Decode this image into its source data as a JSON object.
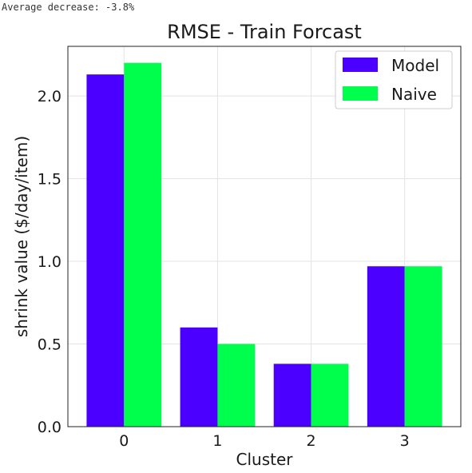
{
  "output": {
    "text": "Average decrease: -3.8%"
  },
  "chart_data": {
    "type": "bar",
    "title": "RMSE - Train Forcast",
    "xlabel": "Cluster",
    "ylabel": "shrink value ($/day/item)",
    "categories": [
      "0",
      "1",
      "2",
      "3"
    ],
    "series": [
      {
        "name": "Model",
        "color": "#4b00ff",
        "values": [
          2.13,
          0.6,
          0.38,
          0.97
        ]
      },
      {
        "name": "Naive",
        "color": "#00ff4d",
        "values": [
          2.2,
          0.5,
          0.38,
          0.97
        ]
      }
    ],
    "ylim": [
      0,
      2.3
    ],
    "yticks": [
      "0.0",
      "0.5",
      "1.0",
      "1.5",
      "2.0"
    ],
    "grid": true,
    "legend_position": "top-right"
  }
}
